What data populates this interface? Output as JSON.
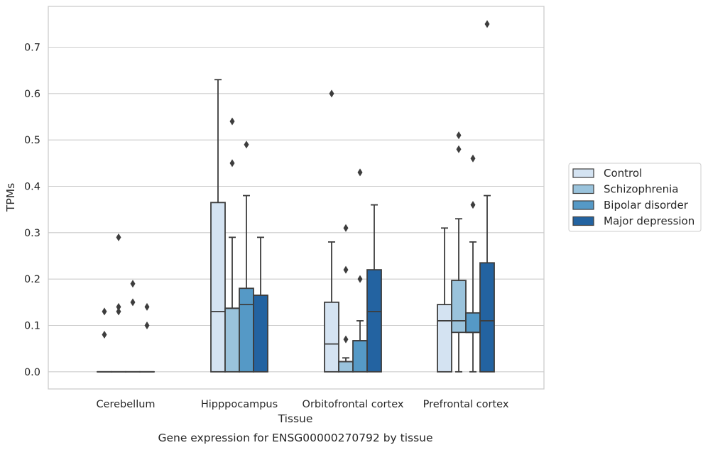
{
  "chart_data": {
    "type": "box",
    "title": "",
    "caption": "Gene expression for ENSG00000270792 by tissue",
    "xlabel": "Tissue",
    "ylabel": "TPMs",
    "ylim": [
      -0.037,
      0.788
    ],
    "yticks": [
      0.0,
      0.1,
      0.2,
      0.3,
      0.4,
      0.5,
      0.6,
      0.7
    ],
    "yticks_labels": [
      "0.0",
      "0.1",
      "0.2",
      "0.3",
      "0.4",
      "0.5",
      "0.6",
      "0.7"
    ],
    "grid": "horizontal",
    "legend_position": "right",
    "categories": [
      "Cerebellum",
      "Hipppocampus",
      "Orbitofrontal cortex",
      "Prefrontal cortex"
    ],
    "series": [
      {
        "name": "Control",
        "color": "#d4e3f2",
        "boxes": [
          {
            "whislo": 0,
            "q1": 0,
            "med": 0,
            "q3": 0,
            "whishi": 0,
            "fliers": [
              0.13,
              0.08
            ]
          },
          {
            "whislo": 0,
            "q1": 0,
            "med": 0.13,
            "q3": 0.365,
            "whishi": 0.63,
            "fliers": []
          },
          {
            "whislo": 0,
            "q1": 0,
            "med": 0.06,
            "q3": 0.15,
            "whishi": 0.28,
            "fliers": [
              0.6
            ]
          },
          {
            "whislo": 0,
            "q1": 0,
            "med": 0.11,
            "q3": 0.145,
            "whishi": 0.31,
            "fliers": []
          }
        ]
      },
      {
        "name": "Schizophrenia",
        "color": "#9ac3dc",
        "boxes": [
          {
            "whislo": 0,
            "q1": 0,
            "med": 0,
            "q3": 0,
            "whishi": 0,
            "fliers": [
              0.29,
              0.14,
              0.13
            ]
          },
          {
            "whislo": 0,
            "q1": 0,
            "med": 0.137,
            "q3": 0.137,
            "whishi": 0.29,
            "fliers": [
              0.54,
              0.45
            ]
          },
          {
            "whislo": 0,
            "q1": 0,
            "med": 0.022,
            "q3": 0.022,
            "whishi": 0.03,
            "fliers": [
              0.31,
              0.22,
              0.07
            ]
          },
          {
            "whislo": 0,
            "q1": 0.085,
            "med": 0.11,
            "q3": 0.197,
            "whishi": 0.33,
            "fliers": [
              0.51,
              0.48
            ]
          }
        ]
      },
      {
        "name": "Bipolar disorder",
        "color": "#5599c6",
        "boxes": [
          {
            "whislo": 0,
            "q1": 0,
            "med": 0,
            "q3": 0,
            "whishi": 0,
            "fliers": [
              0.19,
              0.15
            ]
          },
          {
            "whislo": 0,
            "q1": 0,
            "med": 0.145,
            "q3": 0.18,
            "whishi": 0.38,
            "fliers": [
              0.49
            ]
          },
          {
            "whislo": 0,
            "q1": 0,
            "med": 0.067,
            "q3": 0.067,
            "whishi": 0.11,
            "fliers": [
              0.43,
              0.2
            ]
          },
          {
            "whislo": 0,
            "q1": 0.085,
            "med": 0.085,
            "q3": 0.127,
            "whishi": 0.28,
            "fliers": [
              0.46,
              0.36
            ]
          }
        ]
      },
      {
        "name": "Major depression",
        "color": "#2363a1",
        "boxes": [
          {
            "whislo": 0,
            "q1": 0,
            "med": 0,
            "q3": 0,
            "whishi": 0,
            "fliers": [
              0.14,
              0.1
            ]
          },
          {
            "whislo": 0,
            "q1": 0,
            "med": 0.165,
            "q3": 0.165,
            "whishi": 0.29,
            "fliers": []
          },
          {
            "whislo": 0,
            "q1": 0,
            "med": 0.13,
            "q3": 0.22,
            "whishi": 0.36,
            "fliers": []
          },
          {
            "whislo": 0,
            "q1": 0,
            "med": 0.11,
            "q3": 0.235,
            "whishi": 0.38,
            "fliers": [
              0.75
            ]
          }
        ]
      }
    ],
    "style": {
      "edge_color": "#3d3d3d",
      "grid_color": "#cccccc",
      "spine_color": "#cccccc",
      "background": "#ffffff"
    }
  }
}
